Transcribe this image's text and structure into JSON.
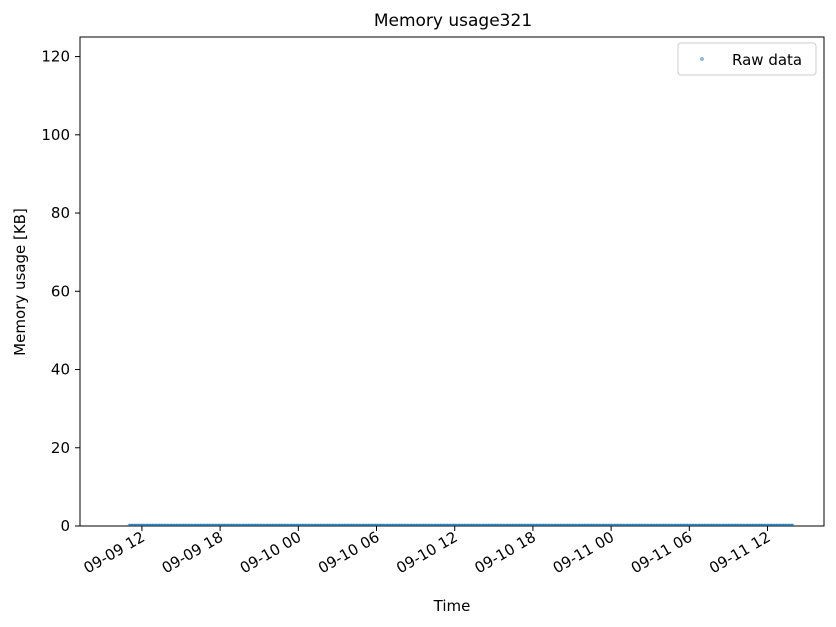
{
  "chart_data": {
    "type": "line",
    "title": "Memory usage321",
    "xlabel": "Time",
    "ylabel": "Memory usage [KB]",
    "xlim": [
      "09-09 07:15",
      "09-11 16:20"
    ],
    "ylim": [
      0,
      125
    ],
    "x_ticks": [
      "09-09 12",
      "09-09 18",
      "09-10 00",
      "09-10 06",
      "09-10 12",
      "09-10 18",
      "09-11 00",
      "09-11 06",
      "09-11 12"
    ],
    "y_ticks": [
      0,
      20,
      40,
      60,
      80,
      100,
      120
    ],
    "grid": false,
    "legend": {
      "position": "top-right",
      "entries": [
        "Raw data"
      ]
    },
    "series": [
      {
        "name": "Raw data",
        "color": "#1f77b4",
        "marker": "point",
        "x_start": "09-09 11:00",
        "x_end": "09-11 14:00",
        "y_value": 0.3
      }
    ]
  }
}
